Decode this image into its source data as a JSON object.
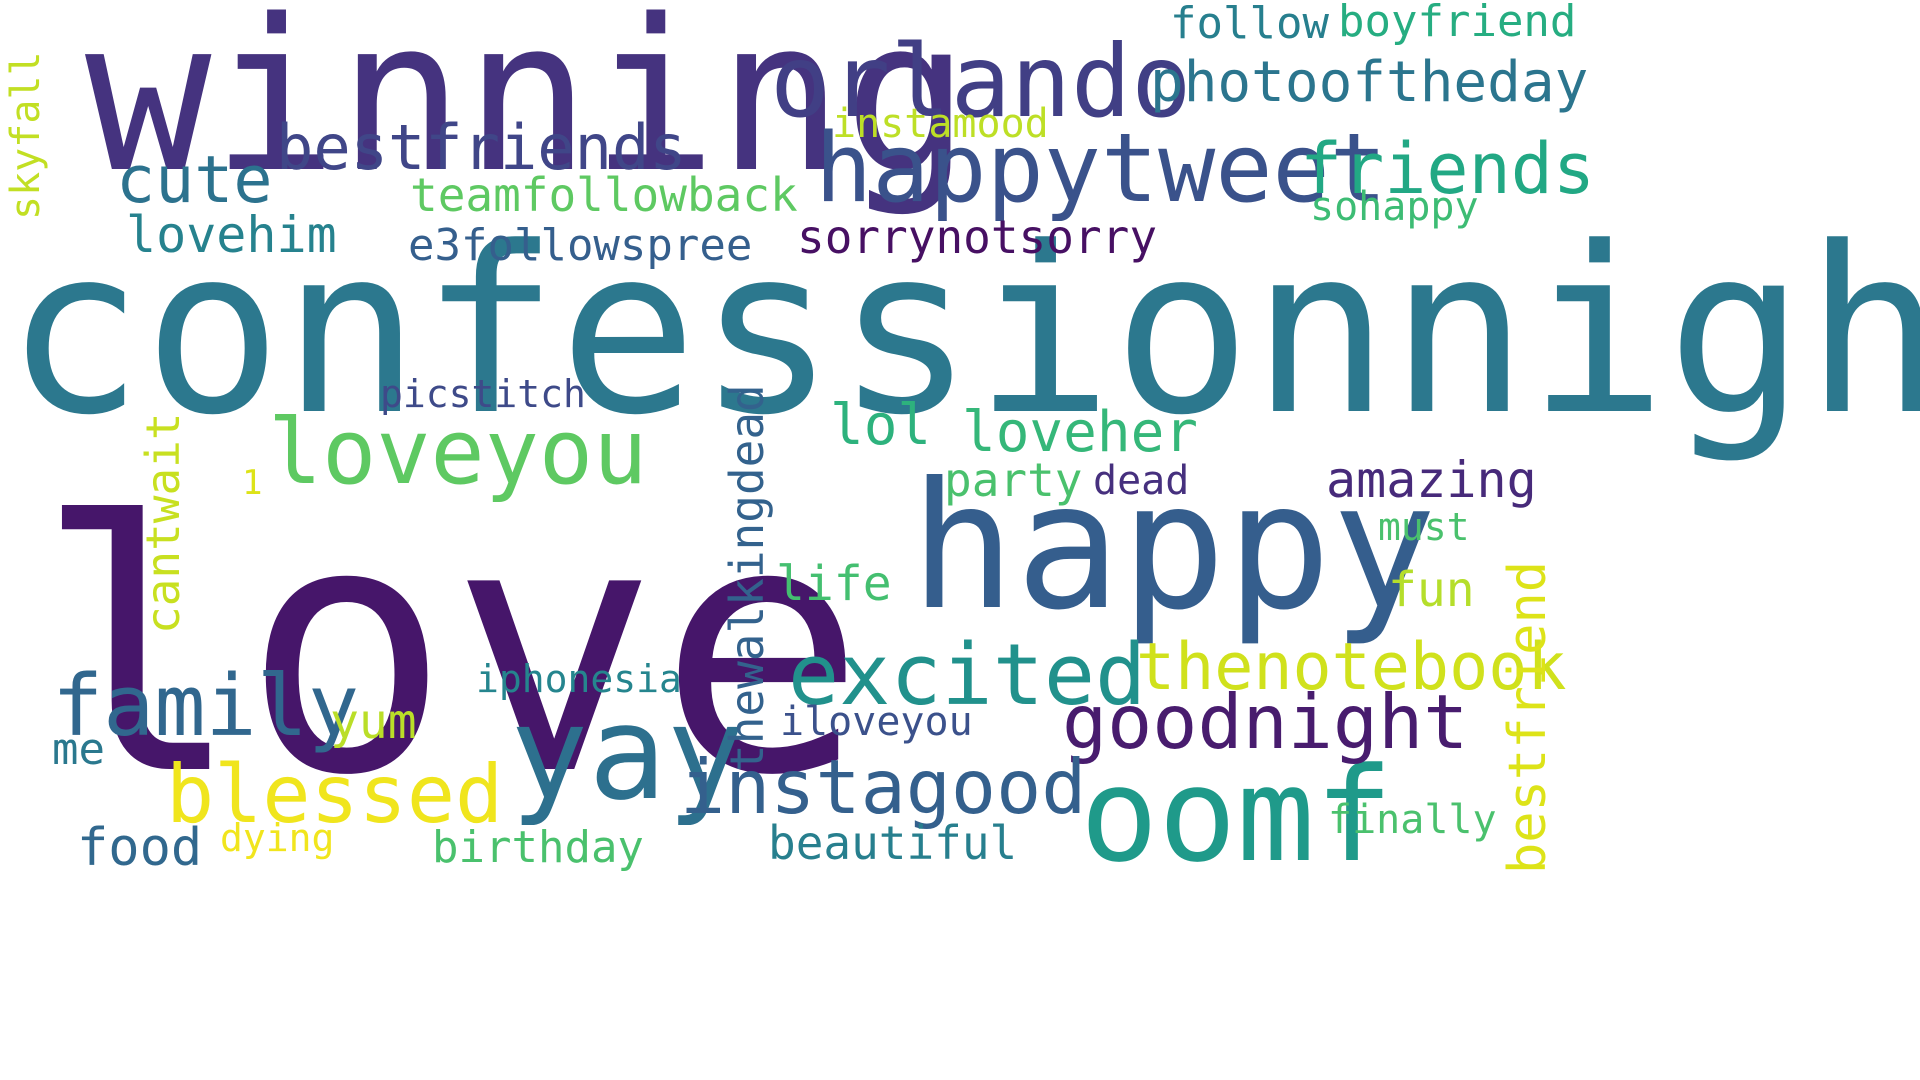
{
  "words": [
    {
      "id": "confessionnight",
      "text": "confessionnight",
      "color": "#2c788e"
    },
    {
      "id": "love",
      "text": "love",
      "color": "#46166a"
    },
    {
      "id": "winning",
      "text": "winning",
      "color": "#45337f"
    },
    {
      "id": "happy",
      "text": "happy",
      "color": "#355e8d"
    },
    {
      "id": "orlando",
      "text": "orlando",
      "color": "#413f85"
    },
    {
      "id": "happytweet",
      "text": "happytweet",
      "color": "#3a528b"
    },
    {
      "id": "yay",
      "text": "yay",
      "color": "#2d708e"
    },
    {
      "id": "oomf",
      "text": "oomf",
      "color": "#1f9a8a"
    },
    {
      "id": "loveyou",
      "text": "loveyou",
      "color": "#5ec962"
    },
    {
      "id": "excited",
      "text": "excited",
      "color": "#21918c"
    },
    {
      "id": "family",
      "text": "family",
      "color": "#31678e"
    },
    {
      "id": "bestfriends",
      "text": "bestfriends",
      "color": "#404688"
    },
    {
      "id": "friends",
      "text": "friends",
      "color": "#22a884"
    },
    {
      "id": "goodnight",
      "text": "goodnight",
      "color": "#481c6e"
    },
    {
      "id": "instagood",
      "text": "instagood",
      "color": "#34608d"
    },
    {
      "id": "blessed",
      "text": "blessed",
      "color": "#f0e51d"
    },
    {
      "id": "thenotebook",
      "text": "thenotebook",
      "color": "#d0e11c"
    },
    {
      "id": "photooftheday",
      "text": "photooftheday",
      "color": "#2b758e"
    },
    {
      "id": "cute",
      "text": "cute",
      "color": "#2c728e"
    },
    {
      "id": "bestfriend",
      "text": "bestfriend",
      "color": "#dde318"
    },
    {
      "id": "thewalkingdead",
      "text": "thewalkingdead",
      "color": "#33628d"
    },
    {
      "id": "boyfriend",
      "text": "boyfriend",
      "color": "#26ad81"
    },
    {
      "id": "follow",
      "text": "follow",
      "color": "#277f8e"
    },
    {
      "id": "teamfollowback",
      "text": "teamfollowback",
      "color": "#5ec962"
    },
    {
      "id": "loveher",
      "text": "loveher",
      "color": "#35b779"
    },
    {
      "id": "lovehim",
      "text": "lovehim",
      "color": "#26828e"
    },
    {
      "id": "sorrynotsorry",
      "text": "sorrynotsorry",
      "color": "#471063"
    },
    {
      "id": "e3followspree",
      "text": "e3followspree",
      "color": "#355f8d"
    },
    {
      "id": "amazing",
      "text": "amazing",
      "color": "#472a7a"
    },
    {
      "id": "lol",
      "text": "lol",
      "color": "#2db27d"
    },
    {
      "id": "party",
      "text": "party",
      "color": "#4ac16d"
    },
    {
      "id": "instamood",
      "text": "instamood",
      "color": "#bddf26"
    },
    {
      "id": "cantwait",
      "text": "cantwait",
      "color": "#c8e020"
    },
    {
      "id": "fun",
      "text": "fun",
      "color": "#b5de2b"
    },
    {
      "id": "life",
      "text": "life",
      "color": "#44bf70"
    },
    {
      "id": "yum",
      "text": "yum",
      "color": "#bade28"
    },
    {
      "id": "birthday",
      "text": "birthday",
      "color": "#4ac16d"
    },
    {
      "id": "beautiful",
      "text": "beautiful",
      "color": "#277f8e"
    },
    {
      "id": "food",
      "text": "food",
      "color": "#31688e"
    },
    {
      "id": "finally",
      "text": "finally",
      "color": "#4ac16d"
    },
    {
      "id": "iphonesia",
      "text": "iphonesia",
      "color": "#25858e"
    },
    {
      "id": "iloveyou",
      "text": "iloveyou",
      "color": "#3b518b"
    },
    {
      "id": "sohappy",
      "text": "sohappy",
      "color": "#3dbc74"
    },
    {
      "id": "picstitch",
      "text": "picstitch",
      "color": "#3e4a89"
    },
    {
      "id": "skyfall",
      "text": "skyfall",
      "color": "#c2df23"
    },
    {
      "id": "must",
      "text": "must",
      "color": "#4ac16d"
    },
    {
      "id": "dead",
      "text": "dead",
      "color": "#46307e"
    },
    {
      "id": "dying",
      "text": "dying",
      "color": "#f1e51d"
    },
    {
      "id": "me",
      "text": "me",
      "color": "#2a788e"
    },
    {
      "id": "one",
      "text": "1",
      "color": "#dde318"
    }
  ]
}
